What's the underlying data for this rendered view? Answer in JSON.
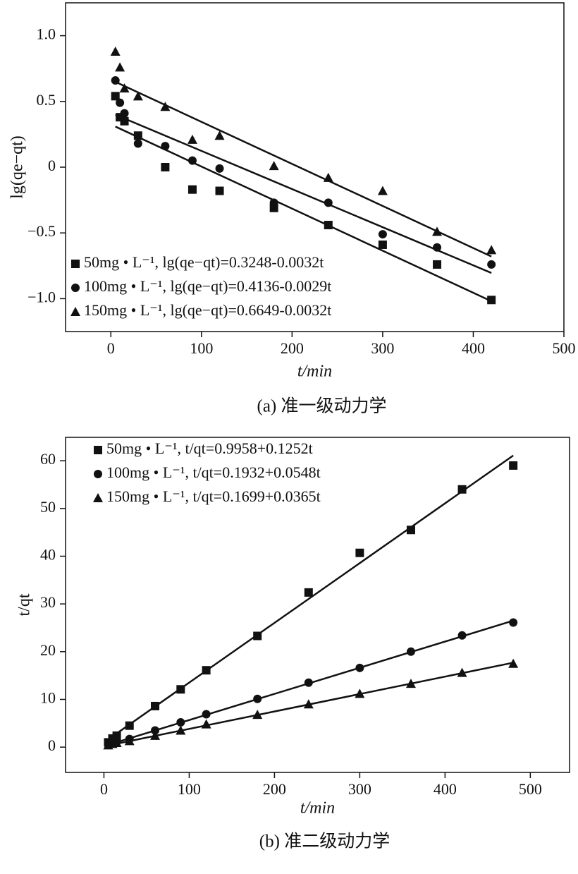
{
  "chart_data": [
    {
      "type": "scatter",
      "caption": "(a) 准一级动力学",
      "xlabel": "t/min",
      "ylabel": "lg(qe−qt)",
      "xlim": [
        -50,
        500
      ],
      "ylim": [
        -1.25,
        1.25
      ],
      "xticks": [
        0,
        100,
        200,
        300,
        400,
        500
      ],
      "yticks": [
        {
          "value": -1,
          "label": "−1.0"
        },
        {
          "value": -0.5,
          "label": "−0.5"
        },
        0,
        0.5,
        {
          "value": 1,
          "label": "1.0"
        }
      ],
      "legend": "lower left",
      "x": [
        5,
        10,
        15,
        30,
        60,
        90,
        120,
        180,
        240,
        300,
        360,
        420
      ],
      "series": [
        {
          "name": "50mg • L⁻¹,  lg(qe−qt)=0.3248-0.0032t",
          "marker": "square",
          "color": "#111111",
          "values": [
            0.54,
            0.38,
            0.35,
            0.24,
            0,
            -0.17,
            -0.18,
            -0.31,
            -0.44,
            -0.59,
            -0.74,
            -1.01
          ],
          "fit": {
            "intercept": 0.3248,
            "slope": -0.0032
          }
        },
        {
          "name": "100mg • L⁻¹,  lg(qe−qt)=0.4136-0.0029t",
          "marker": "circle",
          "color": "#111111",
          "values": [
            0.66,
            0.49,
            0.41,
            0.18,
            0.16,
            0.05,
            -0.01,
            -0.27,
            -0.27,
            -0.51,
            -0.61,
            -0.74
          ],
          "fit": {
            "intercept": 0.4136,
            "slope": -0.0029
          }
        },
        {
          "name": "150mg • L⁻¹,  lg(qe−qt)=0.6649-0.0032t",
          "marker": "triangle",
          "color": "#111111",
          "values": [
            0.88,
            0.76,
            0.6,
            0.54,
            0.46,
            0.21,
            0.24,
            0.01,
            -0.08,
            -0.18,
            -0.49,
            -0.63
          ],
          "fit": {
            "intercept": 0.6649,
            "slope": -0.0032
          }
        }
      ]
    },
    {
      "type": "scatter",
      "caption": "(b) 准二级动力学",
      "xlabel": "t/min",
      "ylabel": "t/qt",
      "xlim": [
        -45,
        546
      ],
      "ylim": [
        -5.3,
        64.9
      ],
      "xticks": [
        0,
        100,
        200,
        300,
        400,
        500
      ],
      "yticks": [
        0,
        10,
        20,
        30,
        40,
        50,
        60
      ],
      "legend": "upper left",
      "x": [
        5,
        10,
        15,
        30,
        60,
        90,
        120,
        180,
        240,
        300,
        360,
        420,
        480
      ],
      "series": [
        {
          "name": "50mg • L⁻¹, t/qt=0.9958+0.1252t",
          "marker": "square",
          "color": "#111111",
          "values": [
            1,
            1.8,
            2.4,
            4.5,
            8.6,
            12.1,
            16.1,
            23.3,
            32.4,
            40.7,
            45.5,
            54,
            59
          ],
          "fit": {
            "intercept": 0.9958,
            "slope": 0.1252
          }
        },
        {
          "name": "100mg • L⁻¹, t/qt=0.1932+0.0548t",
          "marker": "circle",
          "color": "#111111",
          "values": [
            0.5,
            0.9,
            1.2,
            1.7,
            3.5,
            5.2,
            6.9,
            10.1,
            13.5,
            16.6,
            20,
            23.4,
            26.1
          ],
          "fit": {
            "intercept": 0.1932,
            "slope": 0.0548
          }
        },
        {
          "name": "150mg • L⁻¹, t/qt=0.1699+0.0365t",
          "marker": "triangle",
          "color": "#111111",
          "values": [
            0.4,
            0.7,
            0.9,
            1.3,
            2.4,
            3.5,
            4.8,
            6.8,
            9,
            11.2,
            13.3,
            15.6,
            17.5
          ],
          "fit": {
            "intercept": 0.1699,
            "slope": 0.0365
          }
        }
      ]
    }
  ]
}
